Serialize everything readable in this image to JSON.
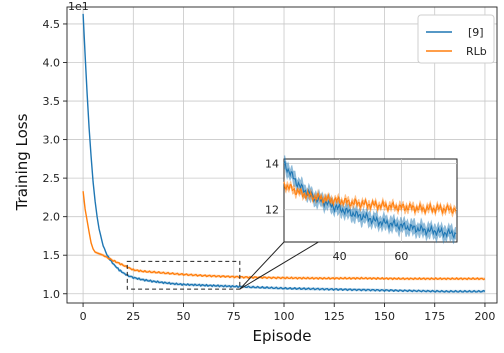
{
  "chart_data": {
    "type": "line",
    "xlabel": "Episode",
    "ylabel": "Training Loss",
    "scale_note": "1e1",
    "xlim": [
      -8,
      206
    ],
    "ylim": [
      0.88,
      4.72
    ],
    "x_ticks": [
      0,
      25,
      50,
      75,
      100,
      125,
      150,
      175,
      200
    ],
    "y_ticks": [
      1.0,
      1.5,
      2.0,
      2.5,
      3.0,
      3.5,
      4.0,
      4.5
    ],
    "y_tick_labels": [
      "1.0",
      "1.5",
      "2.0",
      "2.5",
      "3.0",
      "3.5",
      "4.0",
      "4.5"
    ],
    "grid": true,
    "legend_position": "top-right",
    "series": [
      {
        "name": "[9]",
        "color": "#1f77b4",
        "x": [
          0,
          1,
          2,
          3,
          4,
          5,
          6,
          7,
          8,
          10,
          12,
          14,
          16,
          18,
          20,
          22,
          25,
          30,
          35,
          40,
          45,
          50,
          55,
          60,
          65,
          70,
          75,
          80,
          90,
          100,
          110,
          120,
          130,
          140,
          150,
          160,
          170,
          180,
          190,
          200
        ],
        "y": [
          4.63,
          4.1,
          3.6,
          3.15,
          2.78,
          2.45,
          2.2,
          2.0,
          1.84,
          1.62,
          1.5,
          1.42,
          1.36,
          1.31,
          1.27,
          1.24,
          1.21,
          1.18,
          1.16,
          1.145,
          1.13,
          1.12,
          1.115,
          1.11,
          1.105,
          1.1,
          1.095,
          1.09,
          1.08,
          1.07,
          1.065,
          1.06,
          1.055,
          1.05,
          1.045,
          1.04,
          1.035,
          1.03,
          1.03,
          1.03
        ]
      },
      {
        "name": "RLb",
        "color": "#ff7f0e",
        "x": [
          0,
          1,
          2,
          3,
          4,
          5,
          6,
          8,
          10,
          12,
          15,
          20,
          25,
          30,
          40,
          50,
          60,
          70,
          80,
          90,
          100,
          120,
          140,
          160,
          180,
          200
        ],
        "y": [
          2.33,
          2.1,
          1.95,
          1.8,
          1.66,
          1.58,
          1.54,
          1.52,
          1.5,
          1.47,
          1.43,
          1.37,
          1.31,
          1.29,
          1.27,
          1.25,
          1.235,
          1.225,
          1.215,
          1.21,
          1.205,
          1.2,
          1.2,
          1.195,
          1.195,
          1.195
        ]
      }
    ],
    "inset": {
      "x_ticks": [
        40,
        60
      ],
      "y_ticks": [
        12,
        14
      ],
      "xlim": [
        22,
        78
      ],
      "ylim": [
        10.6,
        14.2
      ],
      "series": [
        {
          "name": "[9]",
          "x": [
            22,
            24,
            26,
            28,
            30,
            32,
            34,
            36,
            38,
            40,
            42,
            44,
            46,
            48,
            50,
            52,
            54,
            56,
            58,
            60,
            62,
            64,
            66,
            68,
            70,
            72,
            74,
            76,
            78
          ],
          "y": [
            14.0,
            13.6,
            13.2,
            12.9,
            12.7,
            12.5,
            12.4,
            12.3,
            12.15,
            12.05,
            11.95,
            11.85,
            11.75,
            11.7,
            11.6,
            11.5,
            11.45,
            11.4,
            11.35,
            11.3,
            11.25,
            11.2,
            11.15,
            11.1,
            11.08,
            11.05,
            11.0,
            10.98,
            10.95
          ],
          "band": 0.35
        },
        {
          "name": "RLb",
          "x": [
            22,
            24,
            26,
            28,
            30,
            32,
            34,
            36,
            38,
            40,
            42,
            44,
            46,
            48,
            50,
            52,
            54,
            56,
            58,
            60,
            62,
            64,
            66,
            68,
            70,
            72,
            74,
            76,
            78
          ],
          "y": [
            13.1,
            12.95,
            12.8,
            12.7,
            12.62,
            12.55,
            12.5,
            12.45,
            12.4,
            12.38,
            12.35,
            12.3,
            12.28,
            12.25,
            12.22,
            12.2,
            12.18,
            12.15,
            12.13,
            12.1,
            12.1,
            12.08,
            12.05,
            12.05,
            12.05,
            12.05,
            12.03,
            12.02,
            12.0
          ],
          "band": 0.2
        }
      ]
    }
  }
}
